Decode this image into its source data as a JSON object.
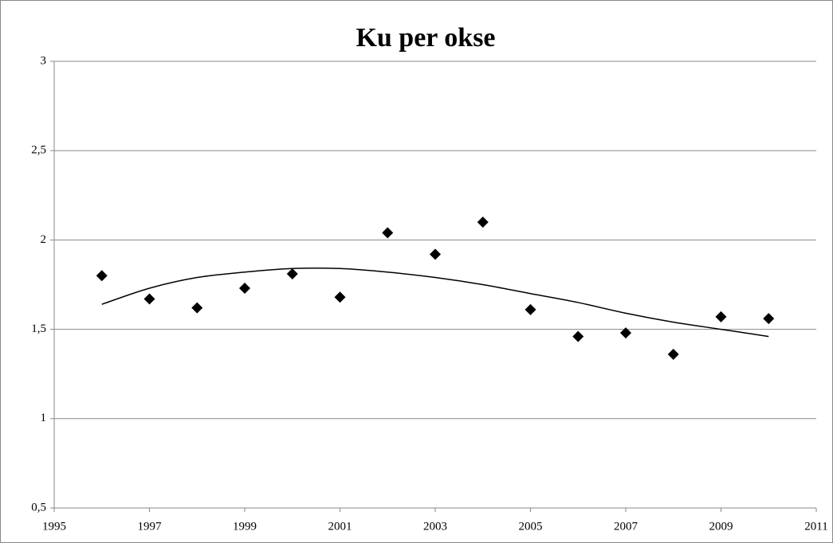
{
  "chart_data": {
    "type": "scatter",
    "title": "Ku per okse",
    "x": [
      1996,
      1997,
      1998,
      1999,
      2000,
      2001,
      2002,
      2003,
      2004,
      2005,
      2006,
      2007,
      2008,
      2009,
      2010
    ],
    "series": [
      {
        "type": "scatter",
        "color": "#000000",
        "values": [
          1.8,
          1.67,
          1.62,
          1.73,
          1.81,
          1.68,
          2.04,
          1.92,
          2.1,
          1.61,
          1.46,
          1.48,
          1.36,
          1.57,
          1.56
        ]
      },
      {
        "type": "line",
        "color": "#000000",
        "values": [
          1.64,
          1.73,
          1.79,
          1.82,
          1.84,
          1.84,
          1.82,
          1.79,
          1.75,
          1.7,
          1.65,
          1.59,
          1.54,
          1.5,
          1.46
        ]
      }
    ],
    "xlim": [
      1995,
      2011
    ],
    "xticks": [
      1995,
      1997,
      1999,
      2001,
      2003,
      2005,
      2007,
      2009,
      2011
    ],
    "ylim": [
      0.5,
      3
    ],
    "yticks": [
      {
        "value": 0.5,
        "label": "0,5"
      },
      1,
      {
        "value": 1.5,
        "label": "1,5"
      },
      2,
      {
        "value": 2.5,
        "label": "2,5"
      },
      3
    ],
    "grid": true
  }
}
